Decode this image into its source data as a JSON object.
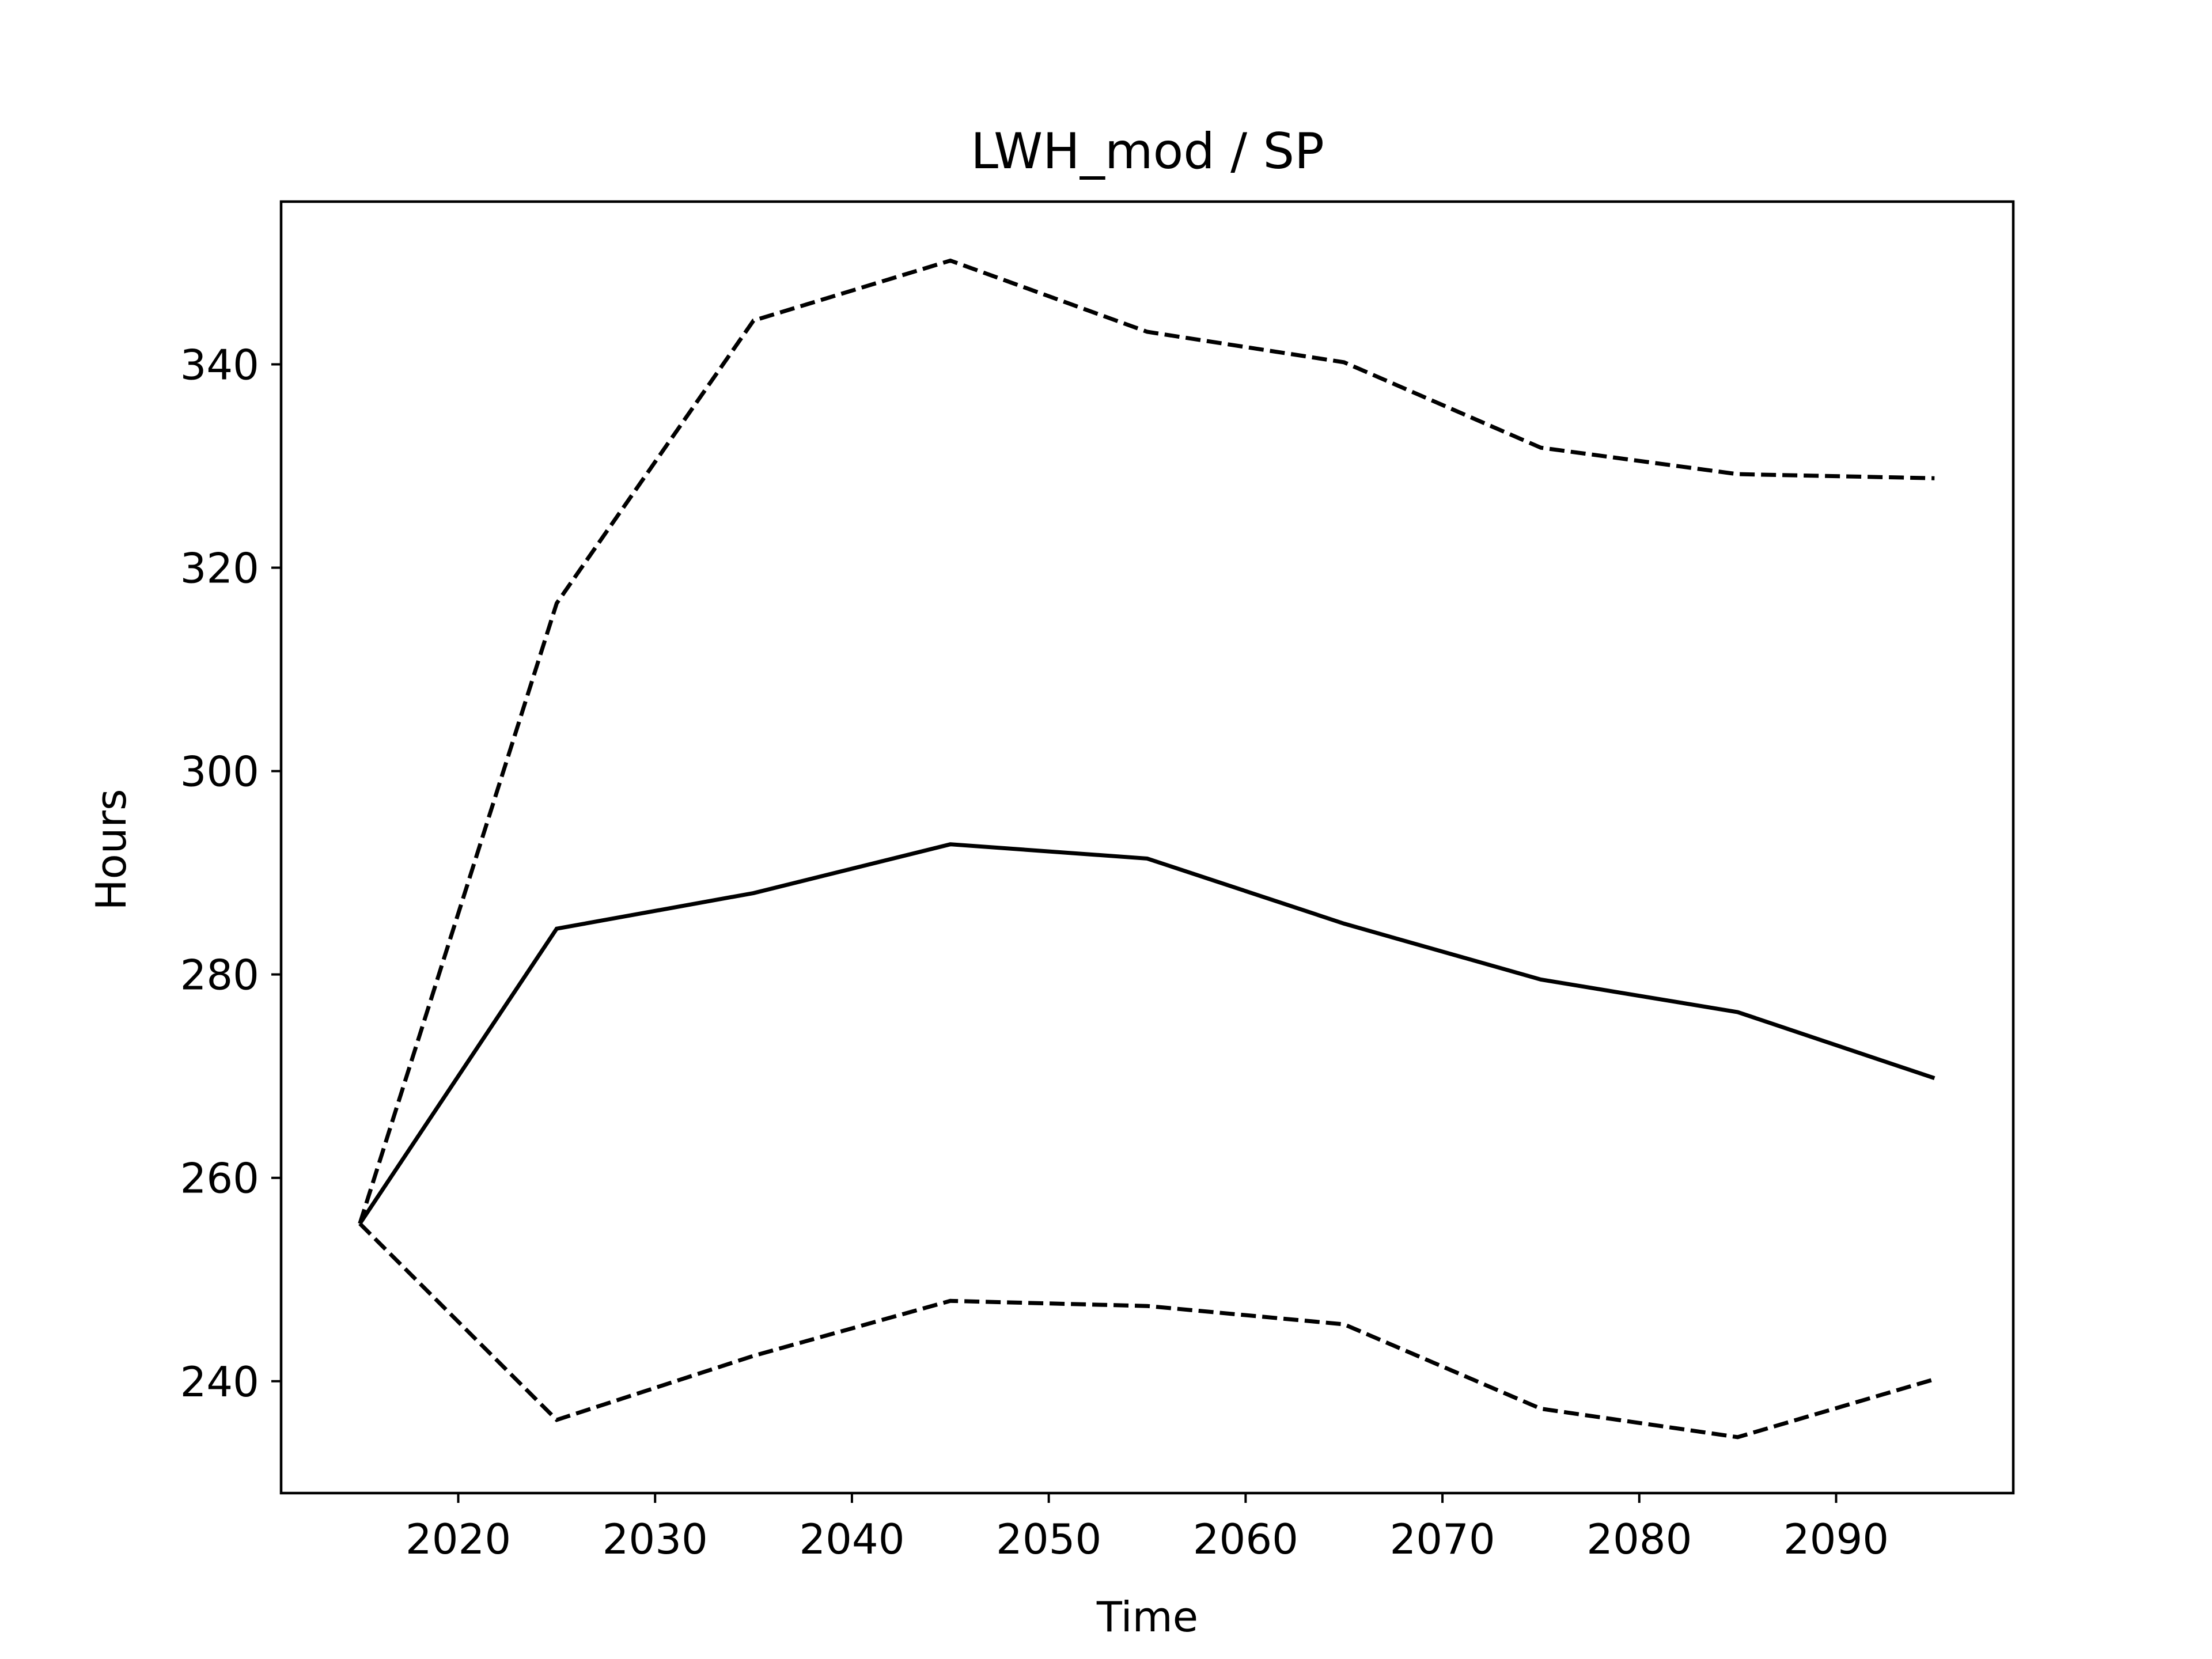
{
  "chart_data": {
    "type": "line",
    "title": "LWH_mod / SP",
    "xlabel": "Time",
    "ylabel": "Hours",
    "x": [
      2015,
      2025,
      2035,
      2045,
      2055,
      2065,
      2075,
      2085,
      2095
    ],
    "xlim": [
      2011,
      2099
    ],
    "ylim": [
      229,
      356
    ],
    "xticks": [
      2020,
      2030,
      2040,
      2050,
      2060,
      2070,
      2080,
      2090
    ],
    "yticks": [
      240,
      260,
      280,
      300,
      320,
      340
    ],
    "grid": false,
    "legend": "none",
    "series": [
      {
        "style": "solid",
        "color": "#000000",
        "values": [
          255.5,
          284.5,
          288.0,
          292.8,
          291.4,
          285.0,
          279.5,
          276.3,
          269.8
        ]
      },
      {
        "style": "dashed",
        "color": "#000000",
        "values": [
          255.5,
          316.5,
          344.3,
          350.2,
          343.2,
          340.2,
          331.8,
          329.2,
          328.8
        ]
      },
      {
        "style": "dashed",
        "color": "#000000",
        "values": [
          255.5,
          236.2,
          242.5,
          247.9,
          247.4,
          245.6,
          237.3,
          234.5,
          240.2
        ]
      }
    ]
  }
}
